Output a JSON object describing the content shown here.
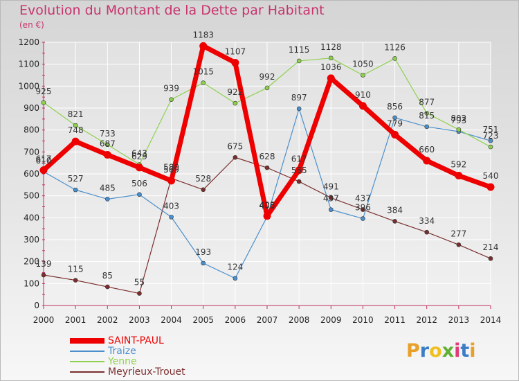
{
  "title": "Evolution du Montant de la Dette par Habitant",
  "unit": "(en €)",
  "logo": {
    "text": "Proxiti",
    "colors": [
      "#e8a02b",
      "#3b7dc6",
      "#f0c020",
      "#5fb033",
      "#e03a78",
      "#3b7dc6",
      "#e8a02b"
    ]
  },
  "chart_data": {
    "type": "line",
    "x": [
      2000,
      2001,
      2002,
      2003,
      2004,
      2005,
      2006,
      2007,
      2008,
      2009,
      2010,
      2011,
      2012,
      2013,
      2014
    ],
    "ylim": [
      0,
      1200
    ],
    "yticks": [
      0,
      100,
      200,
      300,
      400,
      500,
      600,
      700,
      800,
      900,
      1000,
      1100,
      1200
    ],
    "grid": true,
    "legend_position": "bottom-left",
    "series": [
      {
        "name": "SAINT-PAUL",
        "color": "#ee0000",
        "width": 7,
        "marker": 9,
        "values": [
          617,
          748,
          687,
          629,
          569,
          1183,
          1107,
          408,
          617,
          1036,
          910,
          779,
          660,
          592,
          540
        ]
      },
      {
        "name": "Traize",
        "color": "#4b8fcc",
        "width": 1.2,
        "marker": 3,
        "values": [
          610,
          527,
          485,
          506,
          403,
          193,
          124,
          405,
          897,
          437,
          396,
          856,
          815,
          793,
          751
        ]
      },
      {
        "name": "Yenne",
        "color": "#8fd14f",
        "width": 1.2,
        "marker": 3,
        "values": [
          925,
          821,
          733,
          643,
          939,
          1015,
          922,
          992,
          1115,
          1128,
          1050,
          1126,
          877,
          802,
          723
        ]
      },
      {
        "name": "Meyrieux-Trouet",
        "color": "#7a2e2e",
        "width": 1.2,
        "marker": 3,
        "values": [
          139,
          115,
          85,
          55,
          580,
          528,
          675,
          628,
          565,
          491,
          437,
          384,
          334,
          277,
          214
        ]
      }
    ]
  }
}
